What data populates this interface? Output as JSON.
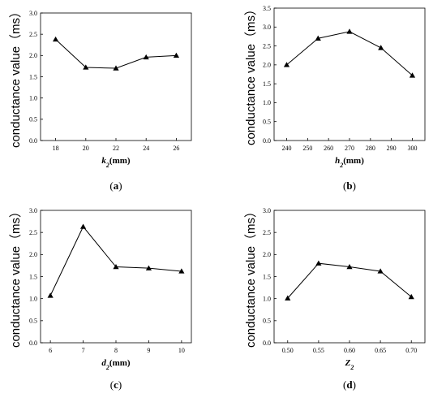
{
  "chart_data": [
    {
      "type": "line",
      "panel_label": "a",
      "xlabel": {
        "symbol": "k",
        "sub": "2",
        "unit": "(mm)"
      },
      "ylabel": "conductance value（ms）",
      "x": [
        18,
        20,
        22,
        24,
        26
      ],
      "xticks": [
        "18",
        "20",
        "22",
        "24",
        "26"
      ],
      "xlim": [
        17,
        27
      ],
      "y": [
        2.38,
        1.72,
        1.7,
        1.96,
        2.0
      ],
      "ylim": [
        0,
        3.0
      ],
      "yticks": [
        "0.0",
        "0.5",
        "1.0",
        "1.5",
        "2.0",
        "2.5",
        "3.0"
      ],
      "marker": "triangle",
      "grid": false
    },
    {
      "type": "line",
      "panel_label": "b",
      "xlabel": {
        "symbol": "h",
        "sub": "2",
        "unit": "(mm)"
      },
      "ylabel": "conductance value（ms）",
      "x": [
        240,
        255,
        270,
        285,
        300
      ],
      "xticks": [
        "240",
        "250",
        "260",
        "270",
        "280",
        "290",
        "300"
      ],
      "xtick_values": [
        240,
        250,
        260,
        270,
        280,
        290,
        300
      ],
      "xlim": [
        234,
        306
      ],
      "y": [
        2.0,
        2.7,
        2.88,
        2.45,
        1.72
      ],
      "ylim": [
        0,
        3.5
      ],
      "yticks": [
        "0.0",
        "0.5",
        "1.0",
        "1.5",
        "2.0",
        "2.5",
        "3.0",
        "3.5"
      ],
      "marker": "triangle",
      "grid": false
    },
    {
      "type": "line",
      "panel_label": "c",
      "xlabel": {
        "symbol": "d",
        "sub": "2",
        "unit": "(mm)"
      },
      "ylabel": "conductance value（ms）",
      "x": [
        6,
        7,
        8,
        9,
        10
      ],
      "xticks": [
        "6",
        "7",
        "8",
        "9",
        "10"
      ],
      "xlim": [
        5.7,
        10.3
      ],
      "y": [
        1.07,
        2.63,
        1.72,
        1.69,
        1.62
      ],
      "ylim": [
        0,
        3.0
      ],
      "yticks": [
        "0.0",
        "0.5",
        "1.0",
        "1.5",
        "2.0",
        "2.5",
        "3.0"
      ],
      "marker": "triangle",
      "grid": false
    },
    {
      "type": "line",
      "panel_label": "d",
      "xlabel": {
        "symbol": "Z",
        "sub": "2",
        "unit": ""
      },
      "ylabel": "conductance value（ms）",
      "x": [
        0.5,
        0.55,
        0.6,
        0.65,
        0.7
      ],
      "xticks": [
        "0.50",
        "0.55",
        "0.60",
        "0.65",
        "0.70"
      ],
      "xlim": [
        0.478,
        0.722
      ],
      "y": [
        1.01,
        1.8,
        1.72,
        1.62,
        1.04
      ],
      "ylim": [
        0,
        3.0
      ],
      "yticks": [
        "0.0",
        "0.5",
        "1.0",
        "1.5",
        "2.0",
        "2.5",
        "3.0"
      ],
      "marker": "triangle",
      "grid": false
    }
  ]
}
